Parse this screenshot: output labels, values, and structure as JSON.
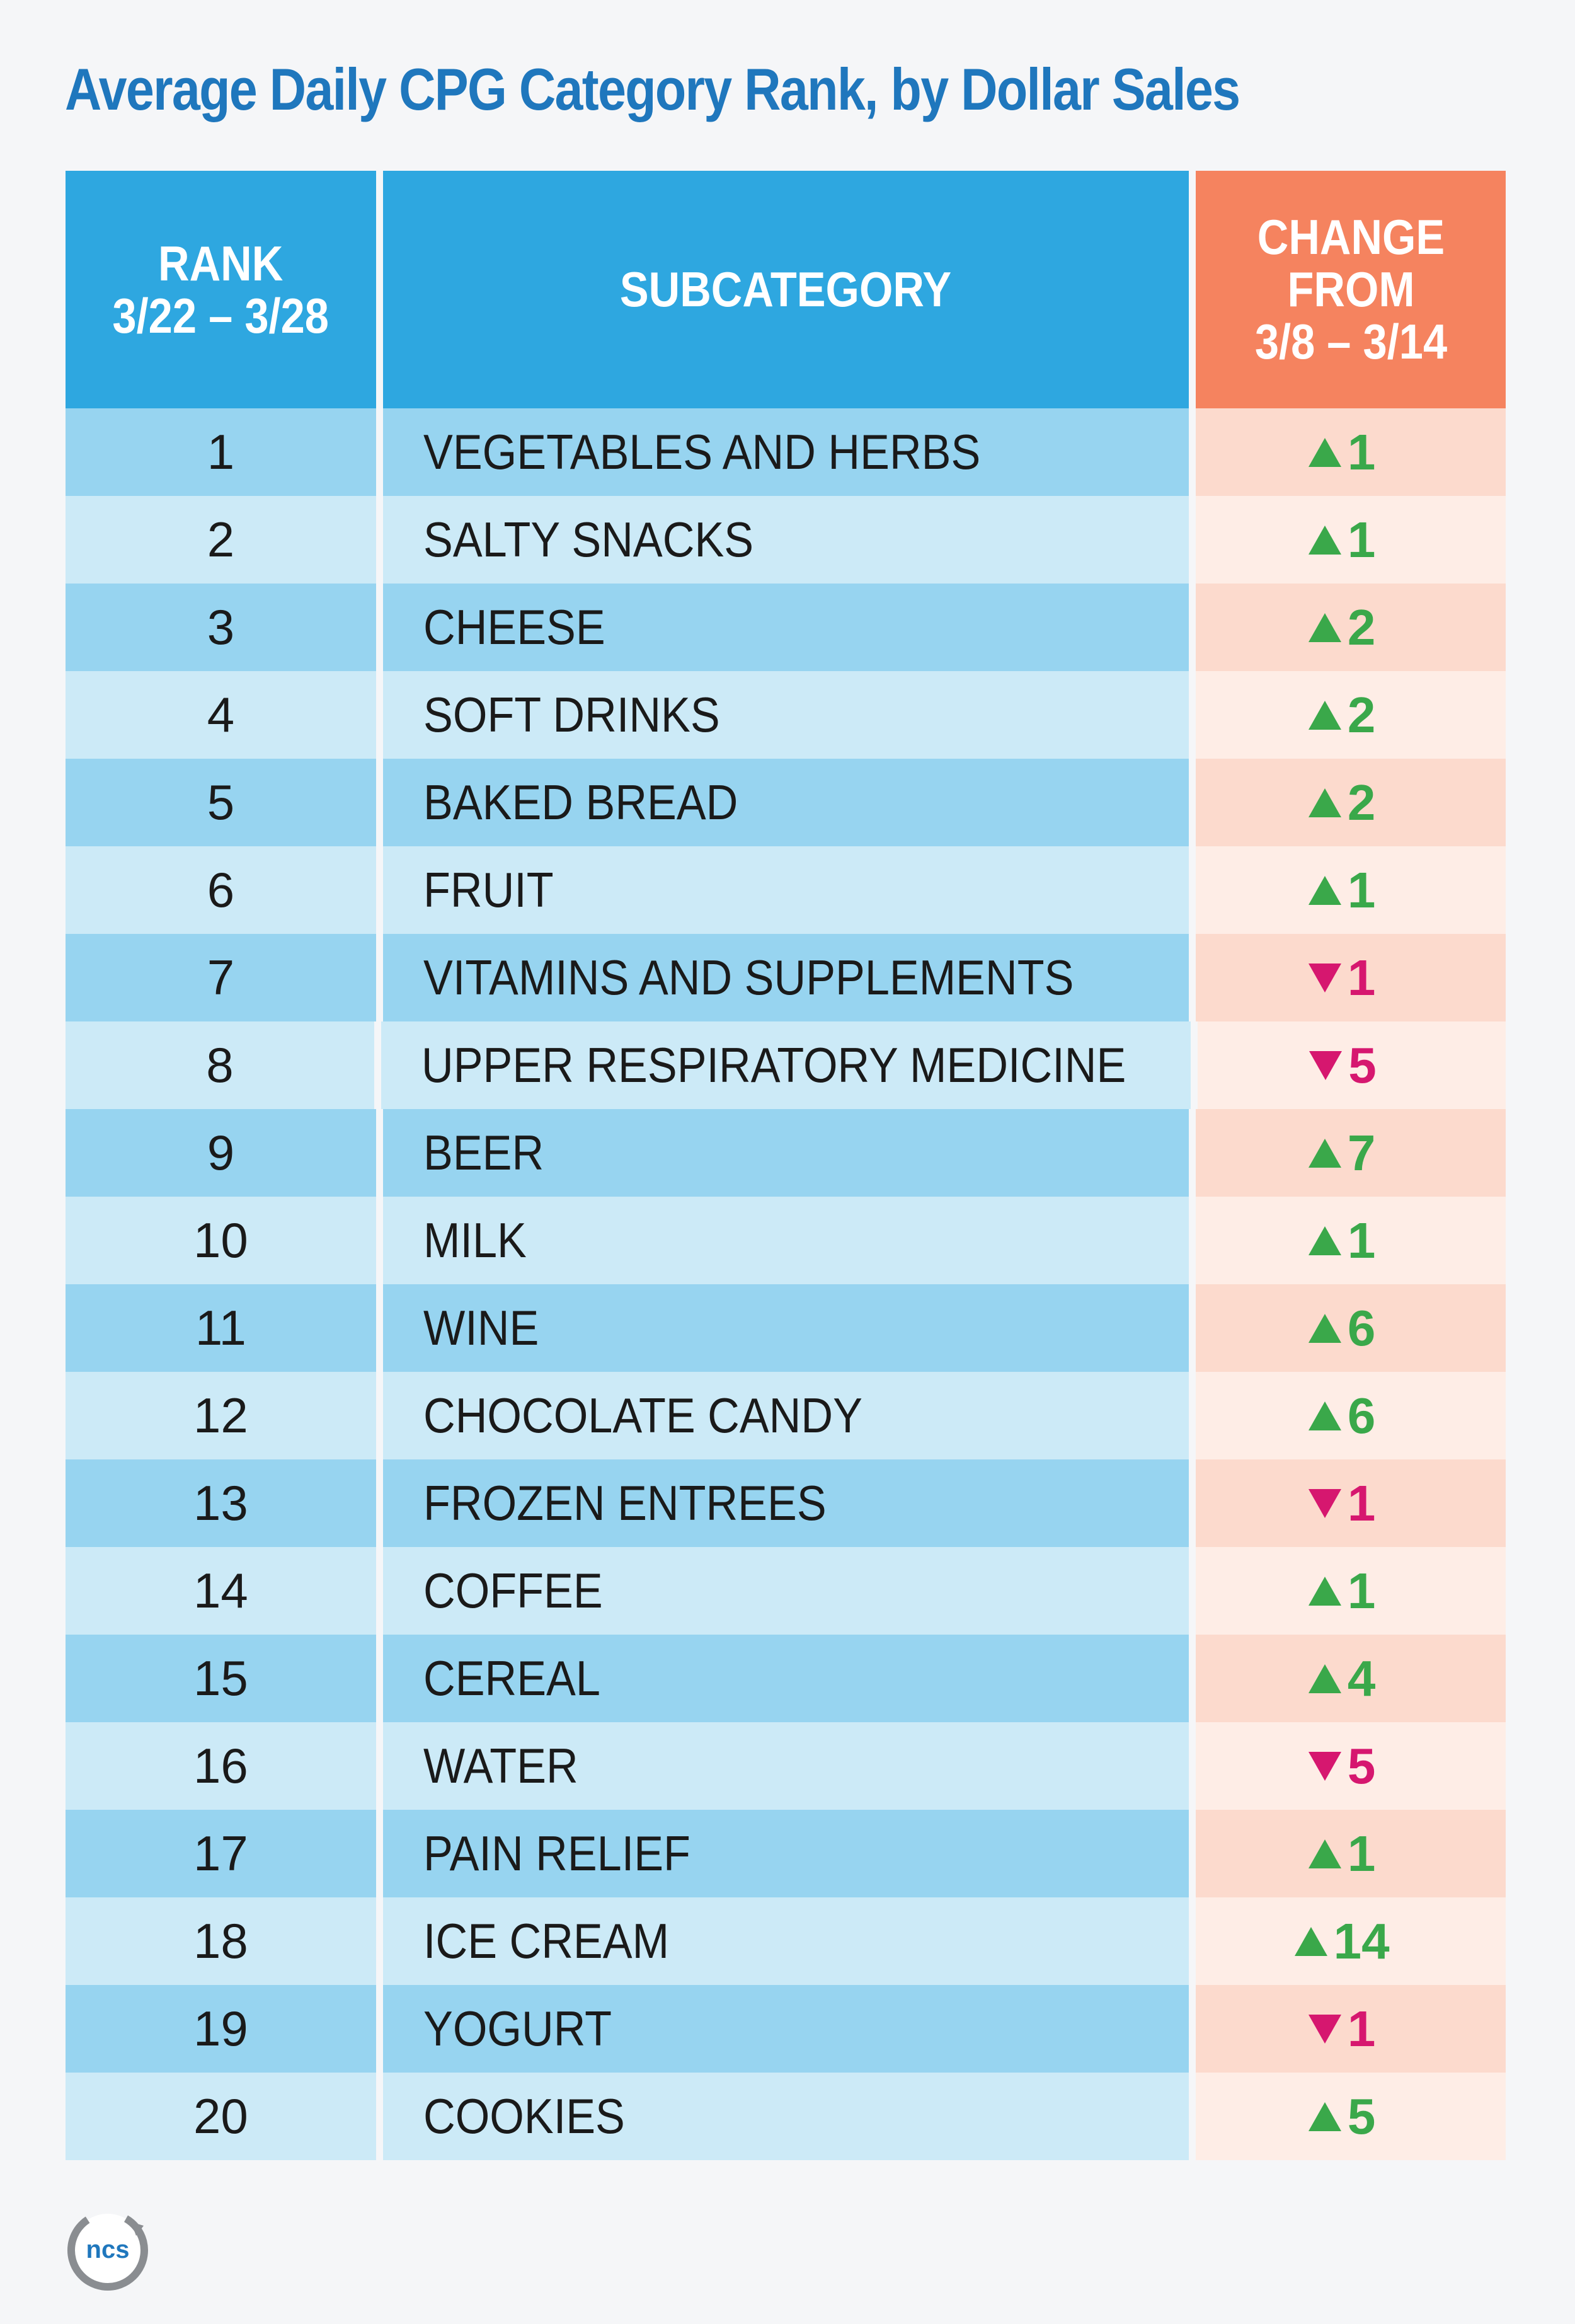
{
  "chart_data": {
    "type": "table",
    "title": "Average Daily CPG Category Rank, by Dollar Sales",
    "columns": [
      "RANK\n3/22 – 3/28",
      "SUBCATEGORY",
      "CHANGE\nFROM\n3/8 – 3/14"
    ],
    "rows": [
      {
        "rank": "1",
        "subcategory": "VEGETABLES AND HERBS",
        "direction": "up",
        "change": "1"
      },
      {
        "rank": "2",
        "subcategory": "SALTY SNACKS",
        "direction": "up",
        "change": "1"
      },
      {
        "rank": "3",
        "subcategory": "CHEESE",
        "direction": "up",
        "change": "2"
      },
      {
        "rank": "4",
        "subcategory": "SOFT DRINKS",
        "direction": "up",
        "change": "2"
      },
      {
        "rank": "5",
        "subcategory": "BAKED BREAD",
        "direction": "up",
        "change": "2"
      },
      {
        "rank": "6",
        "subcategory": "FRUIT",
        "direction": "up",
        "change": "1"
      },
      {
        "rank": "7",
        "subcategory": "VITAMINS AND SUPPLEMENTS",
        "direction": "down",
        "change": "1"
      },
      {
        "rank": "8",
        "subcategory": "UPPER RESPIRATORY MEDICINE",
        "direction": "down",
        "change": "5"
      },
      {
        "rank": "9",
        "subcategory": "BEER",
        "direction": "up",
        "change": "7"
      },
      {
        "rank": "10",
        "subcategory": "MILK",
        "direction": "up",
        "change": "1"
      },
      {
        "rank": "11",
        "subcategory": "WINE",
        "direction": "up",
        "change": "6"
      },
      {
        "rank": "12",
        "subcategory": "CHOCOLATE CANDY",
        "direction": "up",
        "change": "6"
      },
      {
        "rank": "13",
        "subcategory": "FROZEN ENTREES",
        "direction": "down",
        "change": "1"
      },
      {
        "rank": "14",
        "subcategory": "COFFEE",
        "direction": "up",
        "change": "1"
      },
      {
        "rank": "15",
        "subcategory": "CEREAL",
        "direction": "up",
        "change": "4"
      },
      {
        "rank": "16",
        "subcategory": "WATER",
        "direction": "down",
        "change": "5"
      },
      {
        "rank": "17",
        "subcategory": "PAIN RELIEF",
        "direction": "up",
        "change": "1"
      },
      {
        "rank": "18",
        "subcategory": "ICE CREAM",
        "direction": "up",
        "change": "14"
      },
      {
        "rank": "19",
        "subcategory": "YOGURT",
        "direction": "down",
        "change": "1"
      },
      {
        "rank": "20",
        "subcategory": "COOKIES",
        "direction": "up",
        "change": "5"
      }
    ]
  },
  "colors": {
    "title": "#1f77bd",
    "header_blue": "#2ea7e0",
    "header_orange": "#f5835f",
    "up": "#3aa84a",
    "down": "#d6176f"
  },
  "logo": {
    "text": "ncs"
  }
}
